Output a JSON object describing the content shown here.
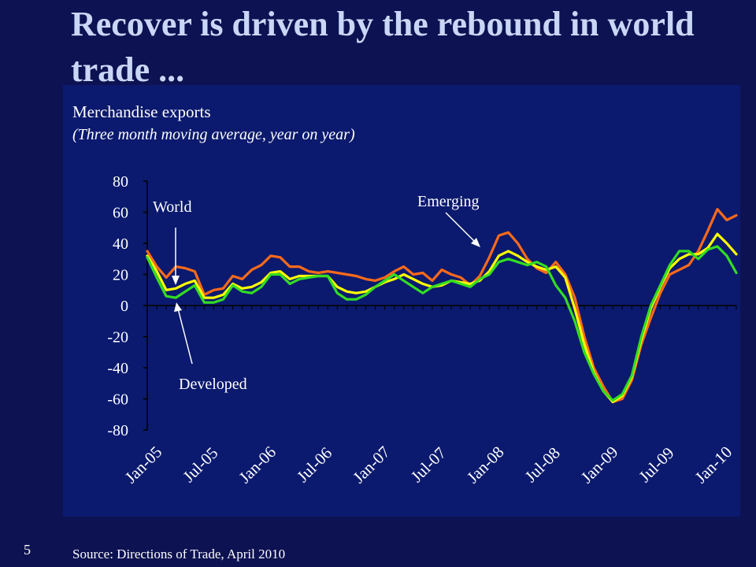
{
  "slide": {
    "title": "Recover is driven by the rebound in world trade ...",
    "subtitle": "Merchandise exports",
    "subtitle_note": "(Three month moving average, year on year)",
    "source": "Source: Directions of Trade, April 2010",
    "page_number": "5",
    "background_color": "#0d1252",
    "panel_color": "#0b1a6e"
  },
  "chart_data": {
    "type": "line",
    "title": "",
    "xlabel": "",
    "ylabel": "",
    "ylim": [
      -80,
      80
    ],
    "yticks": [
      80,
      60,
      40,
      20,
      0,
      -20,
      -40,
      -60,
      -80
    ],
    "xtick_labels": [
      "Jan-05",
      "Jul-05",
      "Jan-06",
      "Jul-06",
      "Jan-07",
      "Jul-07",
      "Jan-08",
      "Jul-08",
      "Jan-09",
      "Jul-09",
      "Jan-10"
    ],
    "x": [
      "Jan-05",
      "Feb-05",
      "Mar-05",
      "Apr-05",
      "May-05",
      "Jun-05",
      "Jul-05",
      "Aug-05",
      "Sep-05",
      "Oct-05",
      "Nov-05",
      "Dec-05",
      "Jan-06",
      "Feb-06",
      "Mar-06",
      "Apr-06",
      "May-06",
      "Jun-06",
      "Jul-06",
      "Aug-06",
      "Sep-06",
      "Oct-06",
      "Nov-06",
      "Dec-06",
      "Jan-07",
      "Feb-07",
      "Mar-07",
      "Apr-07",
      "May-07",
      "Jun-07",
      "Jul-07",
      "Aug-07",
      "Sep-07",
      "Oct-07",
      "Nov-07",
      "Dec-07",
      "Jan-08",
      "Feb-08",
      "Mar-08",
      "Apr-08",
      "May-08",
      "Jun-08",
      "Jul-08",
      "Aug-08",
      "Sep-08",
      "Oct-08",
      "Nov-08",
      "Dec-08",
      "Jan-09",
      "Feb-09",
      "Mar-09",
      "Apr-09",
      "May-09",
      "Jun-09",
      "Jul-09",
      "Aug-09",
      "Sep-09",
      "Oct-09",
      "Nov-09",
      "Dec-09",
      "Jan-10",
      "Feb-10",
      "Mar-10"
    ],
    "series": [
      {
        "name": "Emerging",
        "color": "#ff6a1a",
        "values": [
          35,
          25,
          18,
          25,
          24,
          22,
          7,
          10,
          11,
          19,
          17,
          23,
          26,
          32,
          31,
          25,
          25,
          22,
          21,
          22,
          21,
          20,
          19,
          17,
          16,
          18,
          22,
          25,
          20,
          21,
          16,
          23,
          20,
          18,
          13,
          19,
          31,
          45,
          47,
          40,
          30,
          24,
          21,
          28,
          20,
          5,
          -20,
          -40,
          -52,
          -62,
          -60,
          -48,
          -25,
          -8,
          8,
          20,
          23,
          26,
          35,
          48,
          62,
          55,
          58
        ]
      },
      {
        "name": "World",
        "color": "#ffff00",
        "values": [
          32,
          22,
          10,
          11,
          14,
          16,
          5,
          5,
          7,
          14,
          11,
          12,
          15,
          21,
          22,
          17,
          19,
          19,
          19,
          19,
          12,
          9,
          8,
          9,
          12,
          15,
          17,
          20,
          17,
          14,
          12,
          13,
          16,
          15,
          14,
          16,
          22,
          32,
          35,
          32,
          28,
          25,
          23,
          25,
          18,
          -2,
          -25,
          -43,
          -55,
          -62,
          -58,
          -46,
          -22,
          -2,
          12,
          24,
          30,
          33,
          33,
          37,
          46,
          40,
          33
        ]
      },
      {
        "name": "Developed",
        "color": "#33dd22",
        "values": [
          31,
          18,
          6,
          5,
          9,
          13,
          2,
          2,
          4,
          13,
          9,
          8,
          12,
          20,
          20,
          14,
          17,
          18,
          19,
          19,
          8,
          4,
          4,
          7,
          12,
          16,
          20,
          16,
          12,
          8,
          12,
          14,
          16,
          14,
          12,
          17,
          20,
          28,
          30,
          28,
          26,
          28,
          25,
          13,
          5,
          -10,
          -30,
          -44,
          -55,
          -61,
          -57,
          -45,
          -20,
          0,
          13,
          26,
          35,
          35,
          30,
          36,
          38,
          32,
          21
        ]
      }
    ],
    "annotations": [
      {
        "text": "World",
        "points_to_series": "World"
      },
      {
        "text": "Emerging",
        "points_to_series": "Emerging"
      },
      {
        "text": "Developed",
        "points_to_series": "Developed"
      }
    ],
    "grid": false,
    "legend": "none"
  }
}
